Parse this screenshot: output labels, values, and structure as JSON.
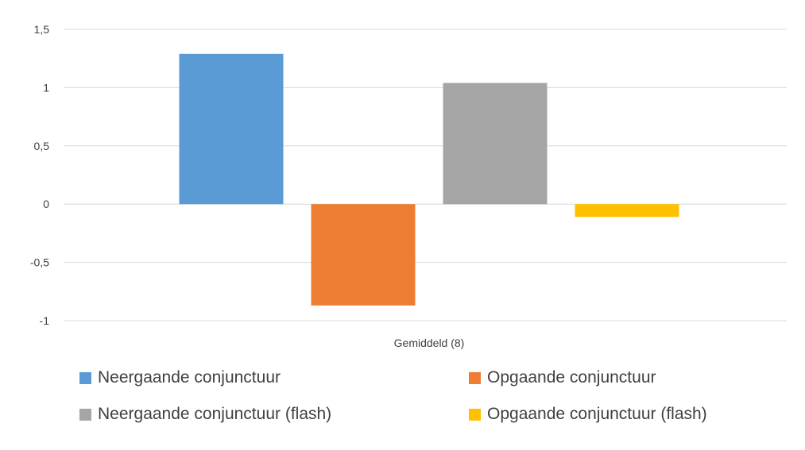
{
  "chart_data": {
    "type": "bar",
    "categories": [
      "Gemiddeld (8)"
    ],
    "series": [
      {
        "name": "Neergaande conjunctuur",
        "values": [
          1.29
        ],
        "color": "#5B9BD5"
      },
      {
        "name": "Opgaande conjunctuur",
        "values": [
          -0.87
        ],
        "color": "#ED7D31"
      },
      {
        "name": "Neergaande conjunctuur (flash)",
        "values": [
          1.04
        ],
        "color": "#A5A5A5"
      },
      {
        "name": "Opgaande conjunctuur (flash)",
        "values": [
          -0.11
        ],
        "color": "#FFC000"
      }
    ],
    "ylim": [
      -1,
      1.5
    ],
    "yticks": [
      1.5,
      1,
      0.5,
      0,
      -0.5,
      -1
    ],
    "ytick_labels": [
      "1,5",
      "1",
      "0,5",
      "0",
      "-0,5",
      "-1"
    ],
    "grid": true,
    "legend_position": "bottom",
    "title": "",
    "xlabel": "",
    "ylabel": ""
  }
}
